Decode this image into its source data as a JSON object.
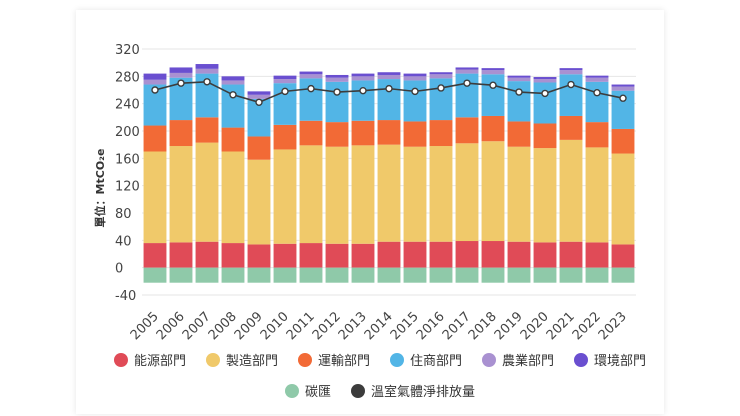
{
  "chart_data": {
    "type": "bar",
    "stacked": true,
    "ylabel": "單位：MtCO₂e",
    "ylim": [
      -40,
      320
    ],
    "yticks": [
      -40,
      0,
      40,
      80,
      120,
      160,
      200,
      240,
      280,
      320
    ],
    "categories": [
      "2005",
      "2006",
      "2007",
      "2008",
      "2009",
      "2010",
      "2011",
      "2012",
      "2013",
      "2014",
      "2015",
      "2016",
      "2017",
      "2018",
      "2019",
      "2020",
      "2021",
      "2022",
      "2023"
    ],
    "series": [
      {
        "name": "能源部門",
        "color": "#e04b57",
        "values": [
          36,
          37,
          38,
          36,
          34,
          35,
          36,
          35,
          35,
          38,
          38,
          38,
          39,
          39,
          38,
          37,
          38,
          37,
          34
        ]
      },
      {
        "name": "製造部門",
        "color": "#f0c96a",
        "values": [
          134,
          141,
          145,
          134,
          124,
          138,
          143,
          142,
          144,
          142,
          139,
          140,
          143,
          146,
          139,
          138,
          149,
          139,
          133
        ]
      },
      {
        "name": "運輸部門",
        "color": "#f26a36",
        "values": [
          38,
          38,
          37,
          35,
          34,
          36,
          36,
          36,
          36,
          36,
          37,
          38,
          38,
          37,
          37,
          36,
          35,
          37,
          36
        ]
      },
      {
        "name": "住商部門",
        "color": "#52b5e6",
        "values": [
          60,
          62,
          64,
          63,
          55,
          61,
          62,
          59,
          59,
          60,
          60,
          61,
          64,
          61,
          59,
          60,
          61,
          59,
          56
        ]
      },
      {
        "name": "農業部門",
        "color": "#a991d1",
        "values": [
          7,
          7,
          7,
          6,
          6,
          6,
          6,
          6,
          6,
          6,
          6,
          6,
          6,
          6,
          5,
          5,
          6,
          6,
          6
        ]
      },
      {
        "name": "環境部門",
        "color": "#6a4fd0",
        "values": [
          9,
          8,
          7,
          6,
          5,
          5,
          4,
          4,
          4,
          4,
          4,
          3,
          3,
          3,
          3,
          3,
          3,
          3,
          3
        ]
      },
      {
        "name": "碳匯",
        "color": "#8fc9a9",
        "values": [
          -22,
          -22,
          -22,
          -22,
          -22,
          -22,
          -22,
          -22,
          -22,
          -22,
          -22,
          -22,
          -22,
          -22,
          -22,
          -22,
          -22,
          -22,
          -22
        ]
      }
    ],
    "line": {
      "name": "溫室氣體淨排放量",
      "color": "#3c3c3c",
      "values": [
        260,
        270,
        272,
        253,
        242,
        258,
        262,
        257,
        259,
        262,
        258,
        263,
        270,
        267,
        257,
        255,
        268,
        256,
        248
      ]
    },
    "grid": true,
    "legend_position": "bottom"
  }
}
